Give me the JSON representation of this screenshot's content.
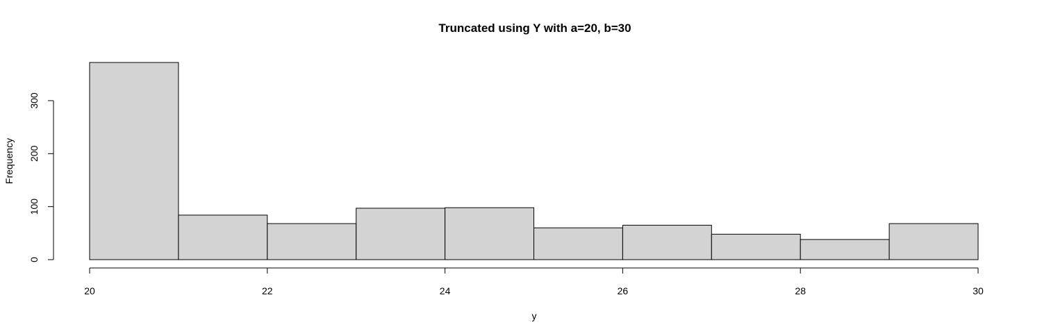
{
  "chart_data": {
    "type": "bar",
    "title": "Truncated using Y with a=20, b=30",
    "xlabel": "y",
    "ylabel": "Frequency",
    "bins": [
      {
        "start": 20,
        "end": 21,
        "count": 372
      },
      {
        "start": 21,
        "end": 22,
        "count": 84
      },
      {
        "start": 22,
        "end": 23,
        "count": 68
      },
      {
        "start": 23,
        "end": 24,
        "count": 97
      },
      {
        "start": 24,
        "end": 25,
        "count": 98
      },
      {
        "start": 25,
        "end": 26,
        "count": 60
      },
      {
        "start": 26,
        "end": 27,
        "count": 65
      },
      {
        "start": 27,
        "end": 28,
        "count": 48
      },
      {
        "start": 28,
        "end": 29,
        "count": 38
      },
      {
        "start": 29,
        "end": 30,
        "count": 68
      }
    ],
    "xlim": [
      20,
      30
    ],
    "ylim": [
      0,
      372
    ],
    "xticks": [
      20,
      22,
      24,
      26,
      28,
      30
    ],
    "yticks": [
      0,
      100,
      200,
      300
    ],
    "grid": false,
    "colors": {
      "bar_fill": "#d3d3d3",
      "bar_stroke": "#000000"
    }
  }
}
